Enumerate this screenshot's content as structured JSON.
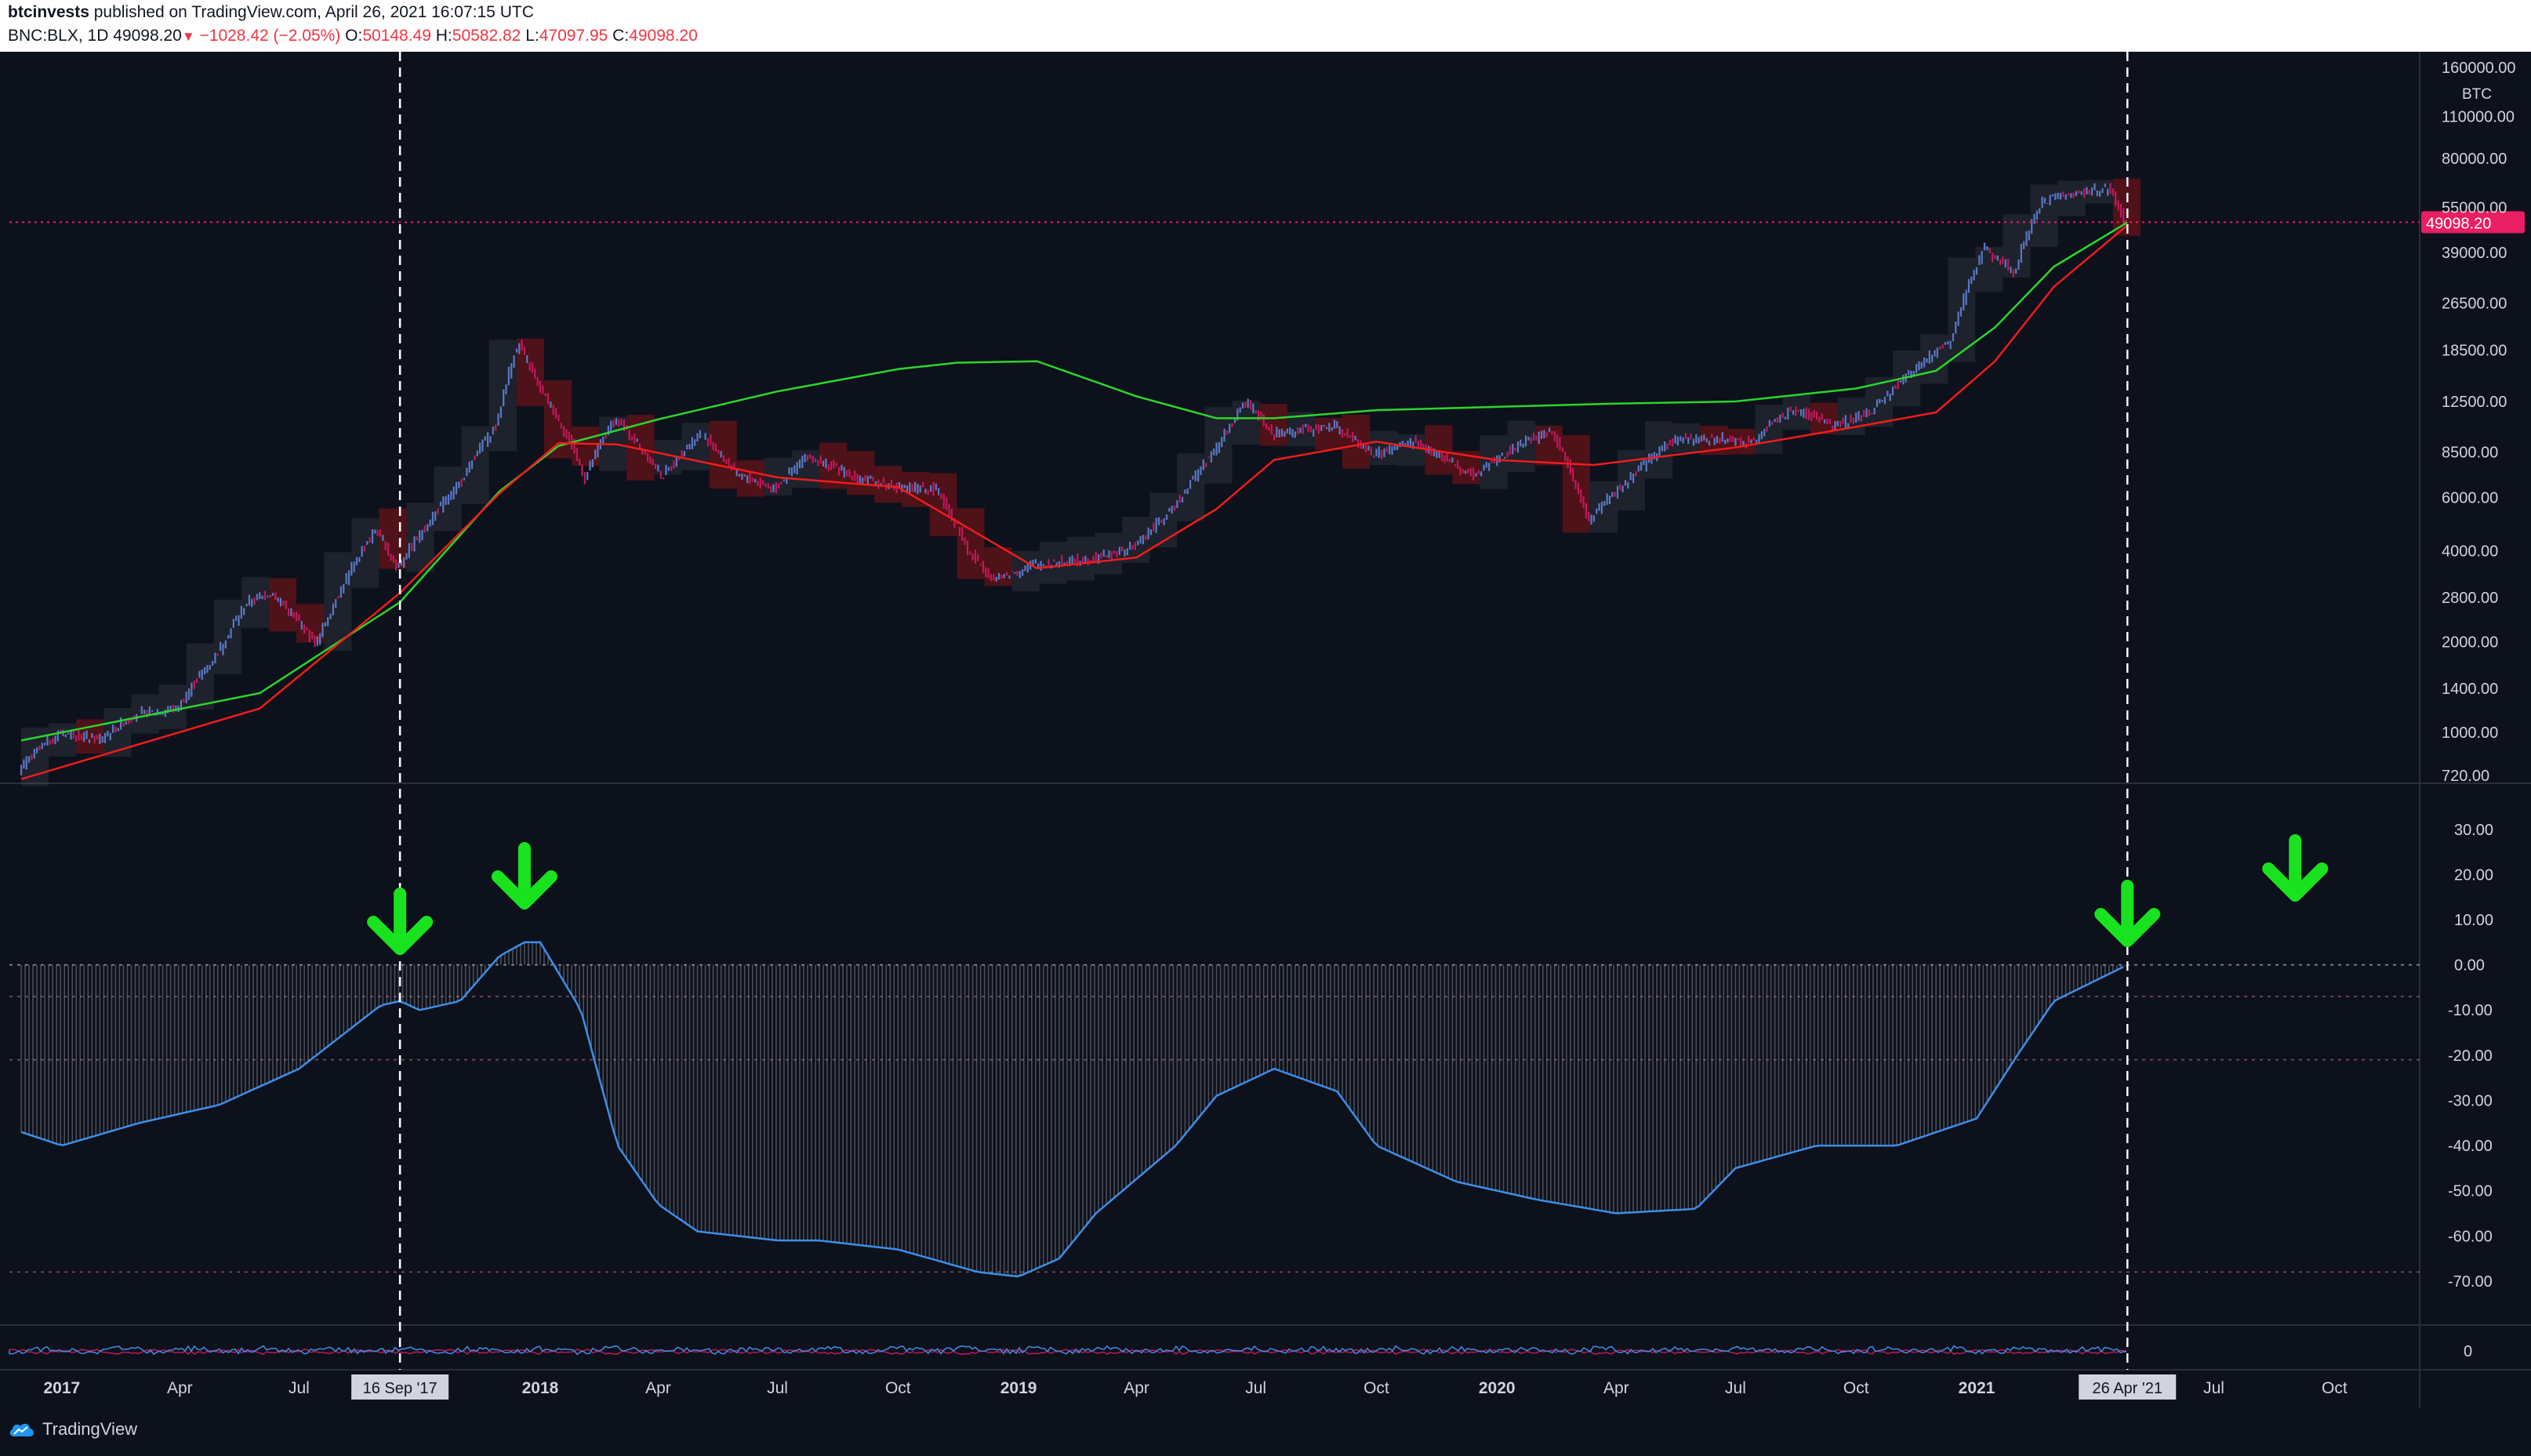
{
  "header": {
    "author": "btcinvests",
    "published": "published on TradingView.com, April 26, 2021 16:07:15 UTC",
    "symbol": "BNC:BLX, 1D",
    "last": "49098.20",
    "change": "−1028.42 (−2.05%)",
    "o_label": "O:",
    "o_val": "50148.49",
    "h_label": "H:",
    "h_val": "50582.82",
    "l_label": "L:",
    "l_val": "47097.95",
    "c_label": "C:",
    "c_val": "49098.20"
  },
  "footer": {
    "logo_text": "TradingView"
  },
  "colors": {
    "background": "#0d111b",
    "price_up": "#5b78c8",
    "price_down": "#c2185b",
    "ma_green": "#2bd62b",
    "ma_red": "#f01c1c",
    "oscillator": "#3d8ee8",
    "arrow": "#19e21e",
    "last_price_tag": "#e91e63"
  },
  "chart_data": [
    {
      "type": "line",
      "panel": "price",
      "currency_label": "BTC",
      "log_scale": true,
      "ylim": [
        720,
        160000
      ],
      "y_ticks": [
        "160000.00",
        "110000.00",
        "80000.00",
        "55000.00",
        "39000.00",
        "26500.00",
        "18500.00",
        "12500.00",
        "8500.00",
        "6000.00",
        "4000.00",
        "2800.00",
        "2000.00",
        "1400.00",
        "1000.00",
        "720.00"
      ],
      "last_price_label": "49098.20",
      "series": [
        {
          "role": "price",
          "x": [
            "2016-12-01",
            "2017-01-01",
            "2017-02-01",
            "2017-03-01",
            "2017-04-01",
            "2017-05-01",
            "2017-05-25",
            "2017-06-12",
            "2017-07-16",
            "2017-08-01",
            "2017-08-31",
            "2017-09-15",
            "2017-10-01",
            "2017-11-01",
            "2017-12-01",
            "2017-12-17",
            "2018-01-01",
            "2018-02-06",
            "2018-03-01",
            "2018-04-06",
            "2018-05-05",
            "2018-06-01",
            "2018-07-01",
            "2018-07-25",
            "2018-09-01",
            "2018-10-01",
            "2018-11-01",
            "2018-11-25",
            "2018-12-15",
            "2019-01-15",
            "2019-02-15",
            "2019-03-15",
            "2019-04-01",
            "2019-05-01",
            "2019-06-01",
            "2019-06-26",
            "2019-07-15",
            "2019-08-01",
            "2019-09-01",
            "2019-10-01",
            "2019-11-01",
            "2019-12-15",
            "2020-01-15",
            "2020-02-13",
            "2020-03-12",
            "2020-03-15",
            "2020-04-15",
            "2020-05-15",
            "2020-06-15",
            "2020-07-15",
            "2020-08-15",
            "2020-09-15",
            "2020-10-15",
            "2020-11-15",
            "2020-12-15",
            "2021-01-08",
            "2021-02-01",
            "2021-02-21",
            "2021-03-13",
            "2021-04-14",
            "2021-04-26"
          ],
          "values": [
            750,
            1000,
            950,
            1150,
            1200,
            1800,
            2700,
            2900,
            1950,
            2800,
            4700,
            3500,
            4400,
            6500,
            10500,
            19500,
            14000,
            6900,
            11000,
            7000,
            9800,
            7200,
            6400,
            8200,
            7000,
            6500,
            6400,
            4000,
            3200,
            3600,
            3700,
            3900,
            4100,
            5500,
            8500,
            12500,
            9800,
            10000,
            10300,
            8300,
            9200,
            7100,
            8700,
            10100,
            5000,
            5200,
            7000,
            9300,
            9400,
            9200,
            11800,
            10500,
            11500,
            15800,
            20000,
            40000,
            33500,
            57000,
            61000,
            63500,
            49098.2
          ]
        },
        {
          "role": "slow-ma",
          "x": [
            "2016-12-01",
            "2017-06-01",
            "2017-09-16",
            "2017-12-01",
            "2018-01-15",
            "2018-04-01",
            "2018-07-01",
            "2018-10-01",
            "2018-11-15",
            "2019-01-15",
            "2019-04-01",
            "2019-06-01",
            "2019-07-15",
            "2019-10-01",
            "2020-01-01",
            "2020-04-01",
            "2020-07-01",
            "2020-10-01",
            "2020-12-01",
            "2021-01-15",
            "2021-03-01",
            "2021-04-26"
          ],
          "values": [
            940,
            1350,
            2700,
            6300,
            8900,
            10900,
            13500,
            16000,
            16800,
            17000,
            13000,
            11000,
            11000,
            11700,
            12000,
            12300,
            12500,
            13800,
            15800,
            22000,
            35000,
            49000
          ]
        },
        {
          "role": "fast-ma",
          "x": [
            "2016-12-01",
            "2017-06-01",
            "2017-09-16",
            "2017-12-01",
            "2018-01-15",
            "2018-03-01",
            "2018-07-01",
            "2018-10-01",
            "2018-11-15",
            "2019-01-15",
            "2019-04-01",
            "2019-06-01",
            "2019-07-15",
            "2019-10-01",
            "2020-01-01",
            "2020-03-15",
            "2020-07-01",
            "2020-10-01",
            "2020-12-01",
            "2021-01-15",
            "2021-03-01",
            "2021-04-26"
          ],
          "values": [
            700,
            1200,
            2900,
            6200,
            9100,
            9000,
            7000,
            6500,
            5000,
            3500,
            3800,
            5500,
            8000,
            9200,
            8000,
            7700,
            8800,
            10300,
            11500,
            17000,
            30000,
            48000
          ]
        }
      ]
    },
    {
      "type": "area",
      "panel": "oscillator",
      "ylim": [
        -78,
        35
      ],
      "y_ticks": [
        "30.00",
        "20.00",
        "10.00",
        "0.00",
        "-10.00",
        "-20.00",
        "-30.00",
        "-40.00",
        "-50.00",
        "-60.00",
        "-70.00"
      ],
      "reference_levels": [
        0,
        -7,
        -21,
        -68
      ],
      "x": [
        "2016-12-01",
        "2017-01-01",
        "2017-03-01",
        "2017-05-01",
        "2017-07-01",
        "2017-09-01",
        "2017-09-16",
        "2017-10-01",
        "2017-11-01",
        "2017-12-01",
        "2017-12-20",
        "2018-01-01",
        "2018-02-01",
        "2018-03-01",
        "2018-04-01",
        "2018-05-01",
        "2018-07-01",
        "2018-08-01",
        "2018-10-01",
        "2018-12-01",
        "2019-01-01",
        "2019-02-01",
        "2019-03-01",
        "2019-05-01",
        "2019-06-01",
        "2019-07-15",
        "2019-09-01",
        "2019-10-01",
        "2019-12-01",
        "2020-01-01",
        "2020-02-01",
        "2020-04-01",
        "2020-06-01",
        "2020-07-01",
        "2020-09-01",
        "2020-11-01",
        "2021-01-01",
        "2021-02-01",
        "2021-03-01",
        "2021-04-26"
      ],
      "values": [
        -37,
        -40,
        -35,
        -31,
        -23,
        -9,
        -8,
        -10,
        -8,
        2,
        5,
        5,
        -10,
        -40,
        -53,
        -59,
        -61,
        -61,
        -63,
        -68,
        -69,
        -65,
        -55,
        -40,
        -29,
        -23,
        -28,
        -40,
        -48,
        -50,
        -52,
        -55,
        -54,
        -45,
        -40,
        -40,
        -34,
        -20,
        -8,
        0
      ]
    },
    {
      "type": "line",
      "panel": "volume-oscillator",
      "y_ticks": [
        "0"
      ]
    },
    {
      "type": "line",
      "panel": "x-axis",
      "x_ticks": [
        "2017",
        "Apr",
        "Jul",
        "16 Sep '17",
        "2018",
        "Apr",
        "Jul",
        "Oct",
        "2019",
        "Apr",
        "Jul",
        "Oct",
        "2020",
        "Apr",
        "Jul",
        "Oct",
        "2021",
        "26 Apr '21",
        "Jul",
        "Oct"
      ],
      "markers": [
        "16 Sep '17",
        "26 Apr '21"
      ],
      "annotations": [
        {
          "type": "arrow-down",
          "x": "2017-09-16"
        },
        {
          "type": "arrow-down",
          "x": "2017-12-20"
        },
        {
          "type": "arrow-down",
          "x": "2021-04-26"
        },
        {
          "type": "arrow-down",
          "x": "2021-09-01"
        }
      ]
    }
  ]
}
